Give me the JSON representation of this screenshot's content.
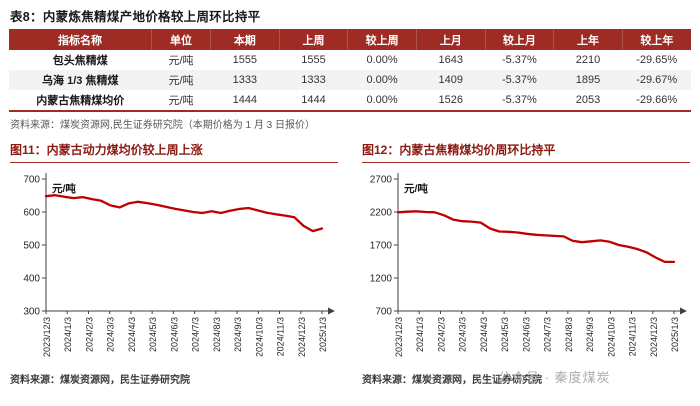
{
  "colors": {
    "accent": "#9F2C24",
    "line": "#C00000",
    "axis": "#404040",
    "alt_row": "#F4F3F1",
    "chart_title": "#8B1A12"
  },
  "table": {
    "title": "表8：内蒙炼焦精煤产地价格较上周环比持平",
    "headers": [
      "指标名称",
      "单位",
      "本期",
      "上周",
      "较上周",
      "上月",
      "较上月",
      "上年",
      "较上年"
    ],
    "rows": [
      [
        "包头焦精煤",
        "元/吨",
        "1555",
        "1555",
        "0.00%",
        "1643",
        "-5.37%",
        "2210",
        "-29.65%"
      ],
      [
        "乌海 1/3 焦精煤",
        "元/吨",
        "1333",
        "1333",
        "0.00%",
        "1409",
        "-5.37%",
        "1895",
        "-29.67%"
      ],
      [
        "内蒙古焦精煤均价",
        "元/吨",
        "1444",
        "1444",
        "0.00%",
        "1526",
        "-5.37%",
        "2053",
        "-29.66%"
      ]
    ],
    "source": "资料来源：煤炭资源网,民生证券研究院（本期价格为 1 月 3 日报价）"
  },
  "watermark": "公众号 · 秦度煤炭",
  "chart_data": [
    {
      "type": "line",
      "title": "图11：内蒙古动力煤均价较上周上涨",
      "ylabel": "元/吨",
      "ylim": [
        300,
        700
      ],
      "yticks": [
        300,
        400,
        500,
        600,
        700
      ],
      "grid": false,
      "legend": "none",
      "x_labels": [
        "2023/12/3",
        "2024/1/3",
        "2024/2/3",
        "2024/3/3",
        "2024/4/3",
        "2024/5/3",
        "2024/6/3",
        "2024/7/3",
        "2024/8/3",
        "2024/9/3",
        "2024/10/3",
        "2024/11/3",
        "2024/12/3",
        "2025/1/3"
      ],
      "series": [
        {
          "name": "内蒙古动力煤均价",
          "color": "#C00000",
          "values": [
            648,
            651,
            646,
            642,
            645,
            639,
            634,
            620,
            614,
            626,
            631,
            627,
            622,
            616,
            610,
            605,
            600,
            597,
            602,
            597,
            604,
            609,
            612,
            605,
            598,
            593,
            589,
            584,
            558,
            542,
            550
          ]
        }
      ],
      "source": "资料来源：煤炭资源网，民生证券研究院"
    },
    {
      "type": "line",
      "title": "图12：内蒙古焦精煤均价周环比持平",
      "ylabel": "元/吨",
      "ylim": [
        700,
        2700
      ],
      "yticks": [
        700,
        1200,
        1700,
        2200,
        2700
      ],
      "grid": false,
      "legend": "none",
      "x_labels": [
        "2023/12/3",
        "2024/1/3",
        "2024/2/3",
        "2024/3/3",
        "2024/4/3",
        "2024/5/3",
        "2024/6/3",
        "2024/7/3",
        "2024/8/3",
        "2024/9/3",
        "2024/10/3",
        "2024/11/3",
        "2024/12/3",
        "2025/1/3"
      ],
      "series": [
        {
          "name": "内蒙古焦精煤均价",
          "color": "#C00000",
          "values": [
            2195,
            2205,
            2210,
            2200,
            2195,
            2150,
            2085,
            2060,
            2055,
            2040,
            1950,
            1905,
            1900,
            1890,
            1870,
            1855,
            1845,
            1838,
            1830,
            1762,
            1742,
            1756,
            1770,
            1748,
            1700,
            1672,
            1640,
            1590,
            1510,
            1444,
            1444
          ]
        }
      ],
      "source": "资料来源：煤炭资源网，民生证券研究院"
    }
  ]
}
